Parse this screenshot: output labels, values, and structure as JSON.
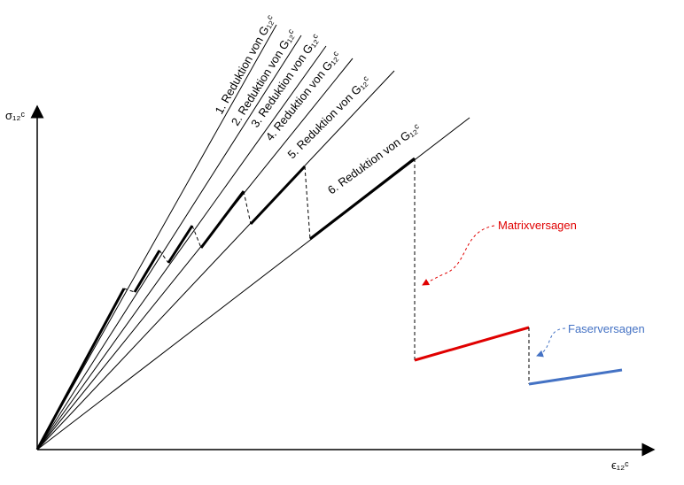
{
  "axes": {
    "y_label": "σ₁₂ᶜ",
    "x_label": "ϵ₁₂ᶜ"
  },
  "reductions": [
    "1. Reduktion von G₁₂ᶜ",
    "2. Reduktion von G₁₂ᶜ",
    "3. Reduktion von G₁₂ᶜ",
    "4. Reduktion von G₁₂ᶜ",
    "5. Reduktion von G₁₂ᶜ",
    "6. Reduktion von G₁₂ᶜ"
  ],
  "annotations": {
    "matrix": "Matrixversagen",
    "fiber": "Faserversagen"
  }
}
